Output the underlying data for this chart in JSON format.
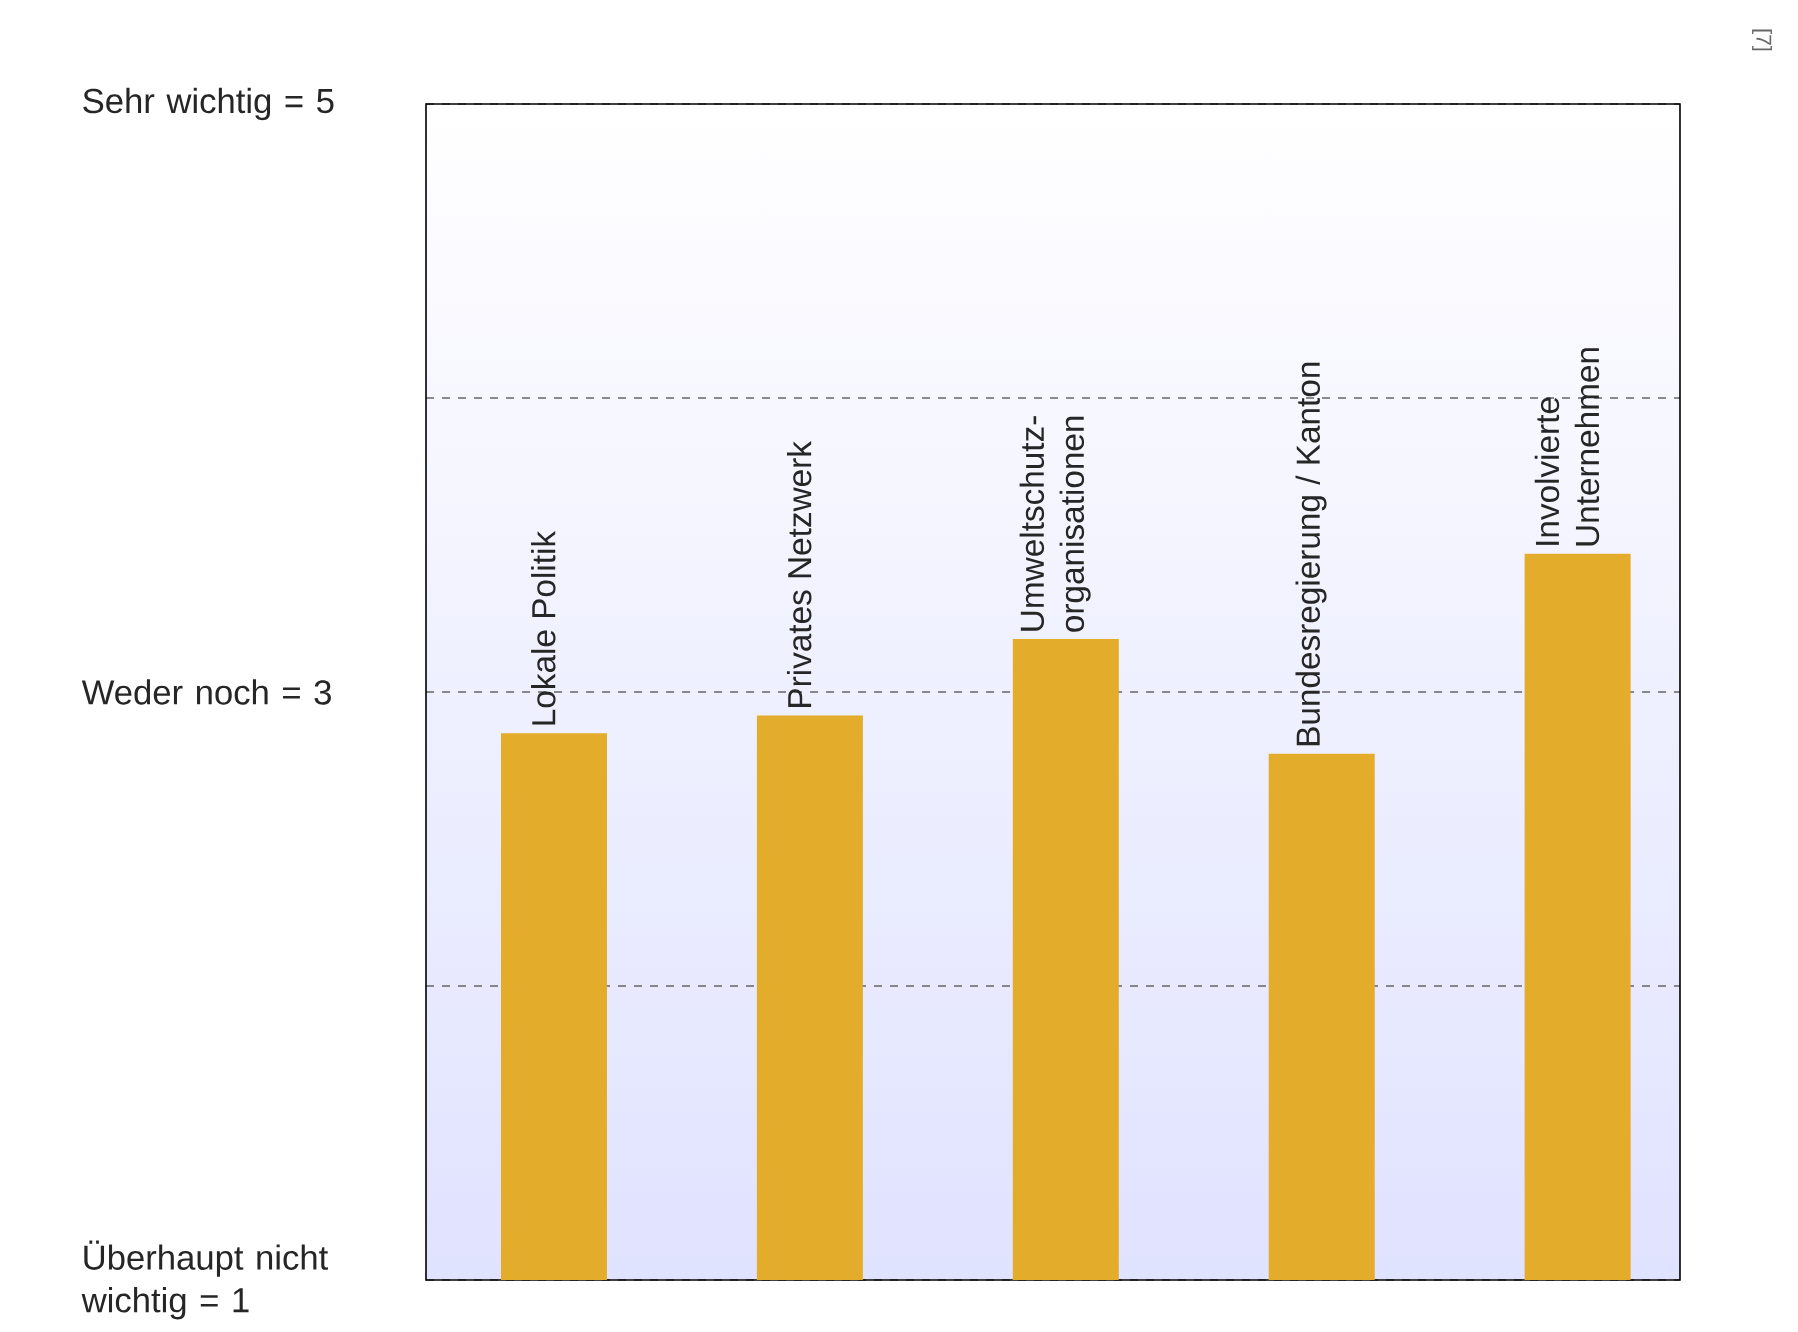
{
  "chart_data": {
    "type": "bar",
    "categories": [
      "Lokale Politik",
      "Privates Netzwerk",
      "Umweltschutz-organisationen",
      "Bundesregierung / Kanton",
      "Involvierte Unternehmen"
    ],
    "values": [
      2.86,
      2.92,
      3.18,
      2.79,
      3.47
    ],
    "color": "#e3ac2a",
    "ylim": [
      1,
      5
    ],
    "yticks": [
      {
        "value": 1,
        "label": "Überhaupt nicht wichtig = 1"
      },
      {
        "value": 2,
        "label": null
      },
      {
        "value": 3,
        "label": "Weder noch = 3"
      },
      {
        "value": 4,
        "label": null
      },
      {
        "value": 5,
        "label": "Sehr wichtig = 5"
      }
    ],
    "grid": "y",
    "annotations": [
      "[7]"
    ]
  }
}
